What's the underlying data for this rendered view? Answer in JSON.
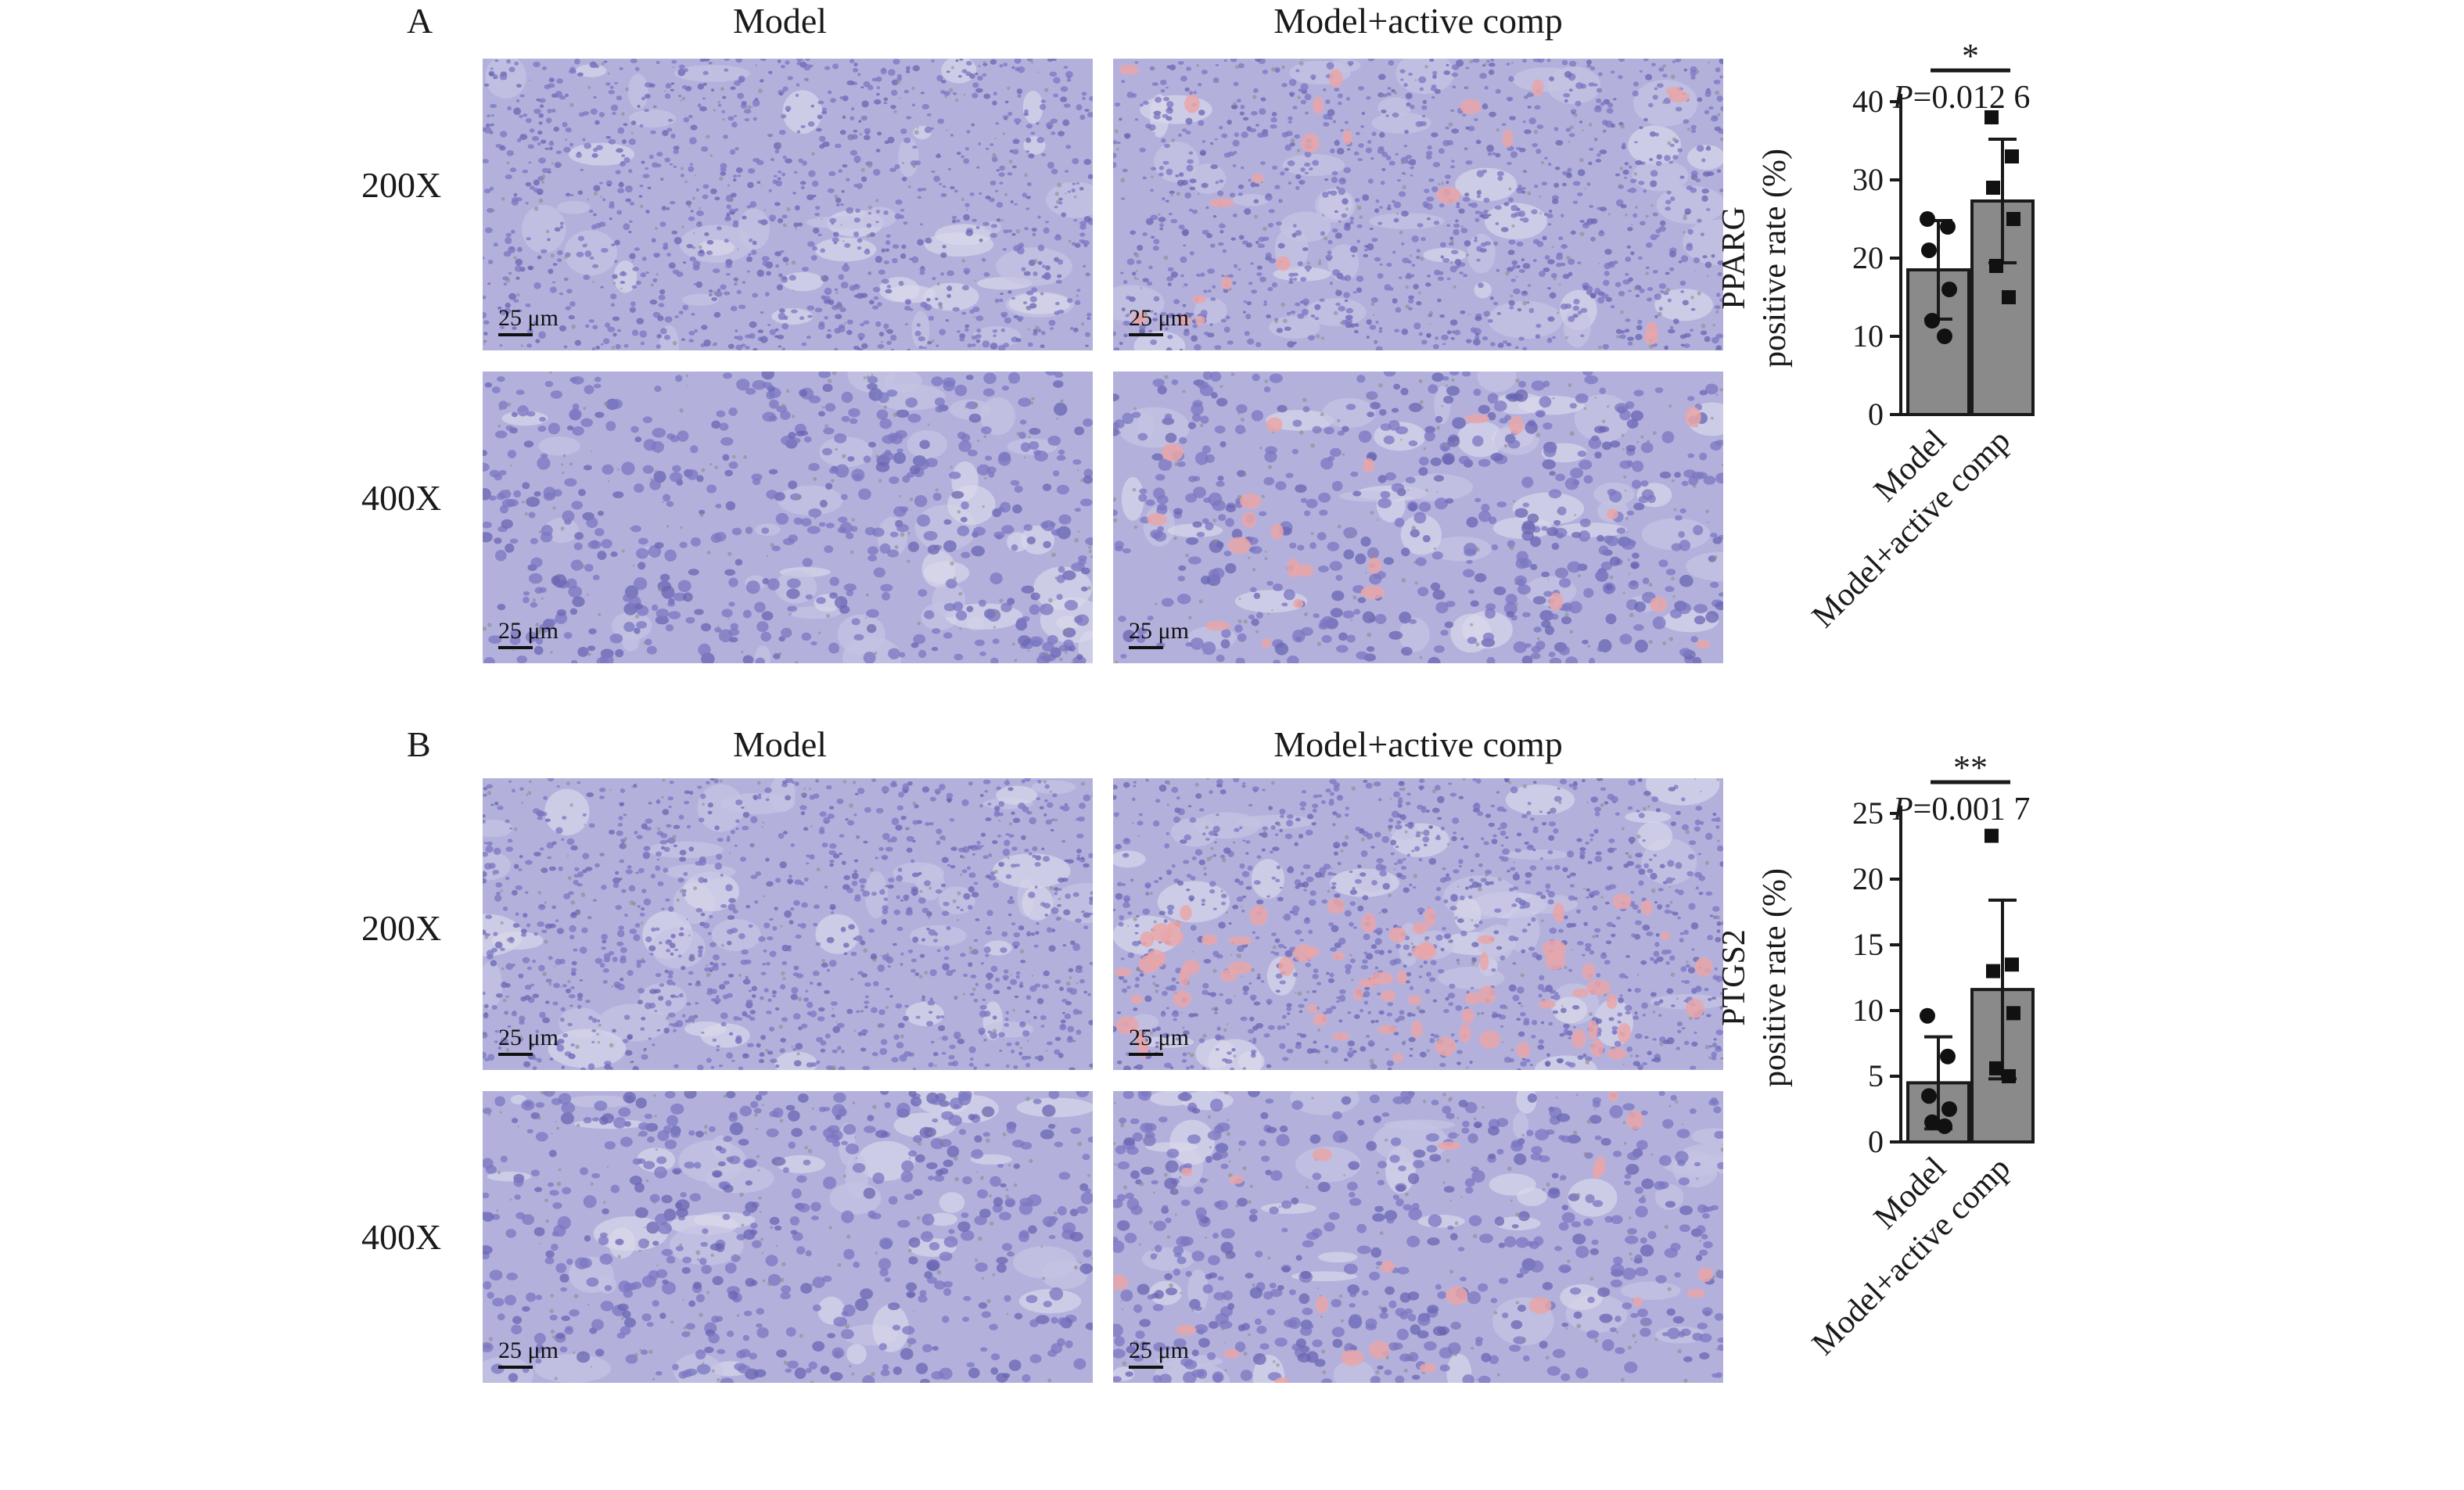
{
  "panels": [
    {
      "letter": "A",
      "columns": [
        "Model",
        "Model+active comp"
      ],
      "rows": [
        "200X",
        "400X"
      ],
      "scale_label": "25 μm",
      "chart_data": {
        "type": "bar",
        "categories": [
          "Model",
          "Model+active comp"
        ],
        "values": [
          18.5,
          27.3
        ],
        "error_sd": [
          6.3,
          7.9
        ],
        "points": [
          [
            25,
            24,
            21,
            16,
            12,
            10
          ],
          [
            38,
            33,
            29,
            25,
            19,
            15
          ]
        ],
        "ylabel_line1": "PPARG",
        "ylabel_line2": "positive rate (%)",
        "ylim": [
          0,
          40
        ],
        "yticks": [
          0,
          10,
          20,
          30,
          40
        ],
        "significance": "*",
        "p_prefix": "P",
        "p_value": "=0.012 6"
      }
    },
    {
      "letter": "B",
      "columns": [
        "Model",
        "Model+active comp"
      ],
      "rows": [
        "200X",
        "400X"
      ],
      "scale_label": "25 μm",
      "chart_data": {
        "type": "bar",
        "categories": [
          "Model",
          "Model+active comp"
        ],
        "values": [
          4.5,
          11.6
        ],
        "error_sd": [
          3.5,
          6.8
        ],
        "points": [
          [
            9.6,
            6.5,
            3.5,
            2.5,
            1.5,
            1.2
          ],
          [
            23.3,
            13.5,
            13.0,
            9.8,
            5.6,
            5.0
          ]
        ],
        "ylabel_line1": "PTGS2",
        "ylabel_line2": "positive rate (%)",
        "ylim": [
          0,
          25
        ],
        "yticks": [
          0,
          5,
          10,
          15,
          20,
          25
        ],
        "significance": "**",
        "p_prefix": "P",
        "p_value": "=0.001 7"
      }
    }
  ],
  "colors": {
    "tissue_base": "#b3b1dc",
    "nuclei": "#7b77c2",
    "stain_positive": "#e9a6a8",
    "bar_fill": "#8a8a8a",
    "point": "#111111"
  }
}
